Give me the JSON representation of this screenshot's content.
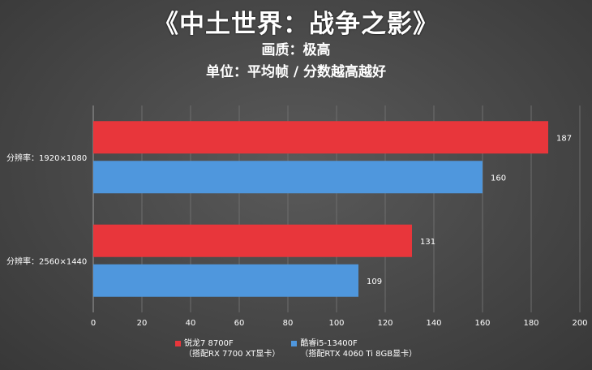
{
  "chart_data": {
    "type": "bar",
    "orientation": "horizontal",
    "title": "《中土世界：战争之影》",
    "subtitle_lines": [
      "画质：极高",
      "单位：平均帧 / 分数越高越好"
    ],
    "categories": [
      "分辨率：1920×1080",
      "分辨率：2560×1440"
    ],
    "series": [
      {
        "name": "锐龙7 8700F",
        "name_line2": "（搭配RX 7700 XT显卡）",
        "color": "#e8363b",
        "values": [
          187,
          131
        ]
      },
      {
        "name": "酷睿i5-13400F",
        "name_line2": "（搭配RTX 4060 Ti 8GB显卡）",
        "color": "#4f97dd",
        "values": [
          160,
          109
        ]
      }
    ],
    "xlim": [
      0,
      200
    ],
    "xticks": [
      0,
      20,
      40,
      60,
      80,
      100,
      120,
      140,
      160,
      180,
      200
    ],
    "grid": true,
    "legend_position": "bottom"
  }
}
